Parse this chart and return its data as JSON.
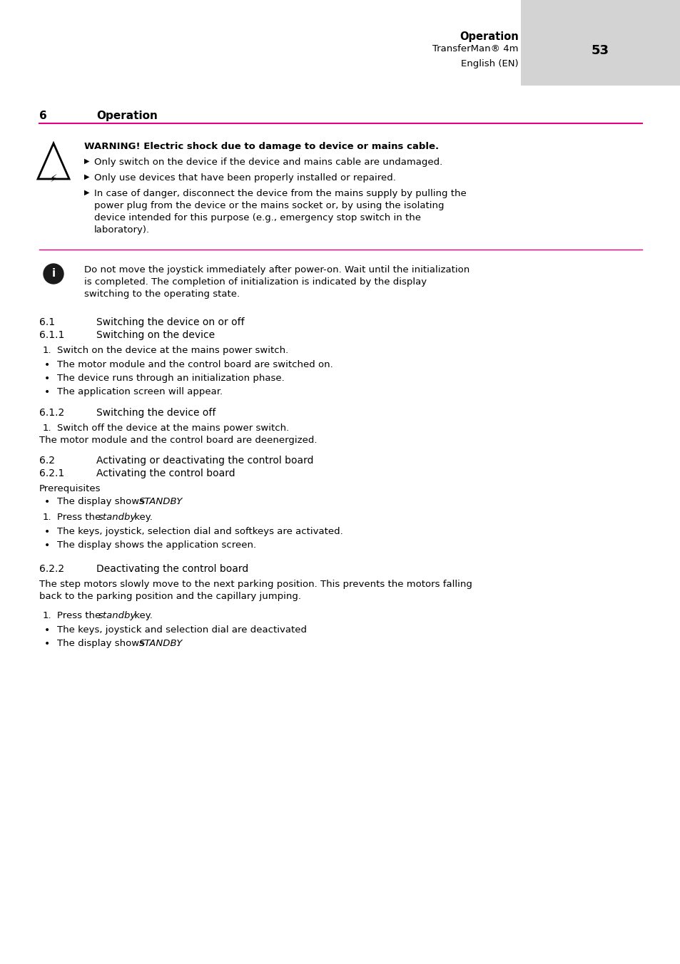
{
  "page_bg": "#ffffff",
  "header_bg": "#d3d3d3",
  "header_text_bold": "Operation",
  "header_line1": "TransferMan® 4m",
  "header_page_num": "53",
  "header_line2": "English (EN)",
  "accent_color": "#e5007d",
  "section_num": "6",
  "section_title": "Operation",
  "warning_title": "WARNING! Electric shock due to damage to device or mains cable.",
  "warning_bullets": [
    "Only switch on the device if the device and mains cable are undamaged.",
    "Only use devices that have been properly installed or repaired.",
    "In case of danger, disconnect the device from the mains supply by pulling the\npower plug from the device or the mains socket or, by using the isolating\ndevice intended for this purpose (e.g., emergency stop switch in the\nlaboratory)."
  ],
  "info_text": "Do not move the joystick immediately after power-on. Wait until the initialization\nis completed. The completion of initialization is indicated by the display\nswitching to the operating state.",
  "sec61_num": "6.1",
  "sec61_title": "Switching the device on or off",
  "sec611_num": "6.1.1",
  "sec611_title": "Switching on the device",
  "sec612_num": "6.1.2",
  "sec612_title": "Switching the device off",
  "sec62_num": "6.2",
  "sec62_title": "Activating or deactivating the control board",
  "sec621_num": "6.2.1",
  "sec621_title": "Activating the control board",
  "sec621_prereq_label": "Prerequisites",
  "sec622_num": "6.2.2",
  "sec622_title": "Deactivating the control board",
  "sec622_intro": "The step motors slowly move to the next parking position. This prevents the motors falling\nback to the parking position and the capillary jumping."
}
